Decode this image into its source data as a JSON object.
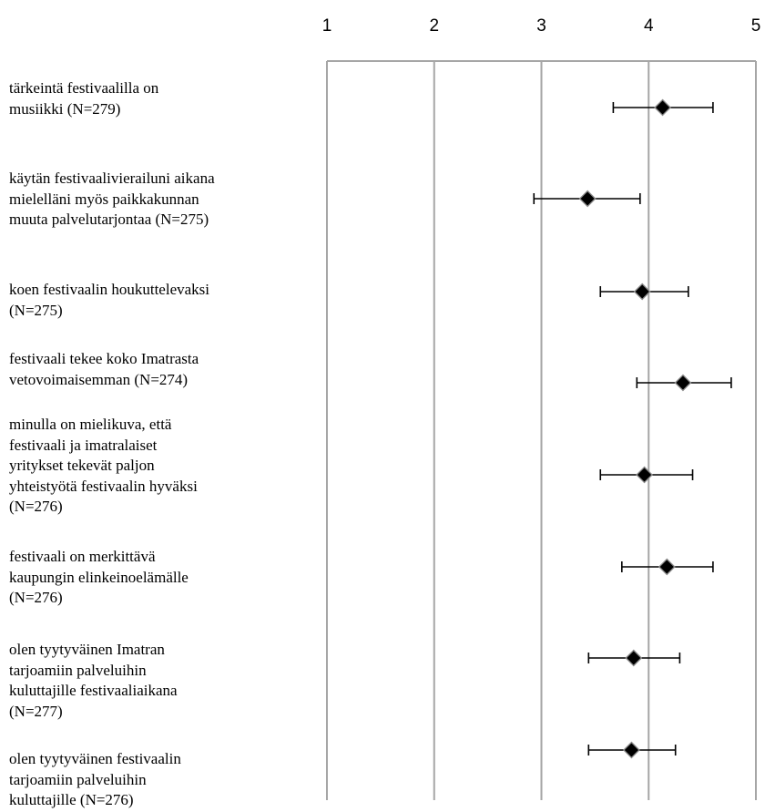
{
  "chart_data": {
    "type": "scatter",
    "title": "",
    "xlabel": "",
    "ylabel": "",
    "xlim": [
      1,
      5
    ],
    "xticks": [
      1,
      2,
      3,
      4,
      5
    ],
    "grid": true,
    "categories": [
      "tärkeintä festivaalilla on\nmusiikki (N=279)",
      "käytän festivaalivierailuni aikana\nmielelläni myös paikkakunnan\nmuuta palvelutarjontaa (N=275)",
      "koen festivaalin houkuttelevaksi\n(N=275)",
      "festivaali tekee koko Imatrasta\nvetovoimaisemman (N=274)",
      "minulla on mielikuva, että\nfestivaali ja imatralaiset\nyritykset tekevät paljon\nyhteistyötä festivaalin hyväksi\n(N=276)",
      "festivaali on merkittävä\nkaupungin elinkeinoelämälle\n(N=276)",
      "olen tyytyväinen Imatran\ntarjoamiin palveluihin\nkuluttajille festivaaliaikana\n(N=277)",
      "olen tyytyväinen festivaalin\ntarjoamiin palveluihin\nkuluttajille (N=276)"
    ],
    "means": [
      4.13,
      3.43,
      3.94,
      4.32,
      3.96,
      4.17,
      3.86,
      3.84
    ],
    "error_low": [
      3.67,
      2.93,
      3.55,
      3.89,
      3.55,
      3.75,
      3.44,
      3.44
    ],
    "error_high": [
      4.6,
      3.92,
      4.37,
      4.77,
      4.41,
      4.6,
      4.29,
      4.25
    ]
  }
}
